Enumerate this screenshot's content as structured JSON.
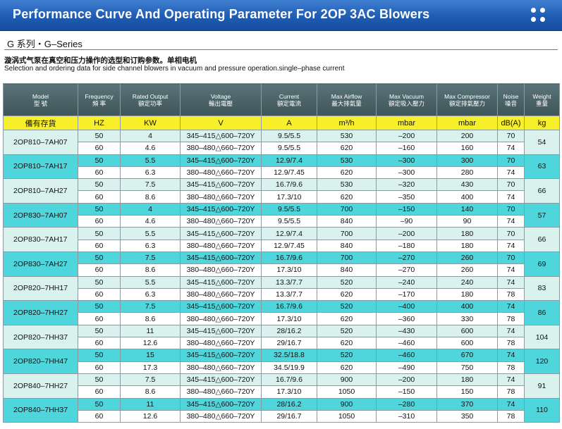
{
  "banner": {
    "title": "Performance Curve And Operating Parameter For 2OP 3AC Blowers"
  },
  "series": {
    "label": "G 系列・G–Series"
  },
  "description": {
    "cn": "漩涡式气泵在真空和压力操作的选型和订购参数。单相电机",
    "en": "Selection and ordering data for side channel blowers in vacuum and pressure operation.single–phase current"
  },
  "table": {
    "headers": [
      {
        "en": "Model",
        "cn": "型  號"
      },
      {
        "en": "Frequency",
        "cn": "頻  率"
      },
      {
        "en": "Rated Output",
        "cn": "額定功率"
      },
      {
        "en": "Voltage",
        "cn": "輸出電壓"
      },
      {
        "en": "Current",
        "cn": "額定電流"
      },
      {
        "en": "Max Airflow",
        "cn": "最大排氣量"
      },
      {
        "en": "Max Vacuum",
        "cn": "額定吸入壓力"
      },
      {
        "en": "Max Compressor",
        "cn": "額定排氣壓力"
      },
      {
        "en": "Noise",
        "cn": "噪音"
      },
      {
        "en": "Weight",
        "cn": "重量"
      }
    ],
    "units": [
      "備有存貨",
      "HZ",
      "KW",
      "V",
      "A",
      "m³/h",
      "mbar",
      "mbar",
      "dB(A)",
      "kg"
    ],
    "groups": [
      {
        "model": "2OP810–7AH07",
        "weight": "54",
        "rows": [
          {
            "hz": "50",
            "kw": "4",
            "v": "345–415△600–720Y",
            "a": "9.5/5.5",
            "airflow": "530",
            "vacuum": "–200",
            "comp": "200",
            "noise": "70"
          },
          {
            "hz": "60",
            "kw": "4.6",
            "v": "380–480△660–720Y",
            "a": "9.5/5.5",
            "airflow": "620",
            "vacuum": "–160",
            "comp": "160",
            "noise": "74"
          }
        ]
      },
      {
        "model": "2OP810–7AH17",
        "weight": "63",
        "rows": [
          {
            "hz": "50",
            "kw": "5.5",
            "v": "345–415△600–720Y",
            "a": "12.9/7.4",
            "airflow": "530",
            "vacuum": "–300",
            "comp": "300",
            "noise": "70"
          },
          {
            "hz": "60",
            "kw": "6.3",
            "v": "380–480△660–720Y",
            "a": "12.9/7.45",
            "airflow": "620",
            "vacuum": "–300",
            "comp": "280",
            "noise": "74"
          }
        ]
      },
      {
        "model": "2OP810–7AH27",
        "weight": "66",
        "rows": [
          {
            "hz": "50",
            "kw": "7.5",
            "v": "345–415△600–720Y",
            "a": "16.7/9.6",
            "airflow": "530",
            "vacuum": "–320",
            "comp": "430",
            "noise": "70"
          },
          {
            "hz": "60",
            "kw": "8.6",
            "v": "380–480△660–720Y",
            "a": "17.3/10",
            "airflow": "620",
            "vacuum": "–350",
            "comp": "400",
            "noise": "74"
          }
        ]
      },
      {
        "model": "2OP830–7AH07",
        "weight": "57",
        "rows": [
          {
            "hz": "50",
            "kw": "4",
            "v": "345–415△600–720Y",
            "a": "9.5/5.5",
            "airflow": "700",
            "vacuum": "–150",
            "comp": "140",
            "noise": "70"
          },
          {
            "hz": "60",
            "kw": "4.6",
            "v": "380–480△660–720Y",
            "a": "9.5/5.5",
            "airflow": "840",
            "vacuum": "–90",
            "comp": "90",
            "noise": "74"
          }
        ]
      },
      {
        "model": "2OP830–7AH17",
        "weight": "66",
        "rows": [
          {
            "hz": "50",
            "kw": "5.5",
            "v": "345–415△600–720Y",
            "a": "12.9/7.4",
            "airflow": "700",
            "vacuum": "–200",
            "comp": "180",
            "noise": "70"
          },
          {
            "hz": "60",
            "kw": "6.3",
            "v": "380–480△660–720Y",
            "a": "12.9/7.45",
            "airflow": "840",
            "vacuum": "–180",
            "comp": "180",
            "noise": "74"
          }
        ]
      },
      {
        "model": "2OP830–7AH27",
        "weight": "69",
        "rows": [
          {
            "hz": "50",
            "kw": "7.5",
            "v": "345–415△600–720Y",
            "a": "16.7/9.6",
            "airflow": "700",
            "vacuum": "–270",
            "comp": "260",
            "noise": "70"
          },
          {
            "hz": "60",
            "kw": "8.6",
            "v": "380–480△660–720Y",
            "a": "17.3/10",
            "airflow": "840",
            "vacuum": "–270",
            "comp": "260",
            "noise": "74"
          }
        ]
      },
      {
        "model": "2OP820–7HH17",
        "weight": "83",
        "rows": [
          {
            "hz": "50",
            "kw": "5.5",
            "v": "345–415△600–720Y",
            "a": "13.3/7.7",
            "airflow": "520",
            "vacuum": "–240",
            "comp": "240",
            "noise": "74"
          },
          {
            "hz": "60",
            "kw": "6.3",
            "v": "380–480△660–720Y",
            "a": "13.3/7.7",
            "airflow": "620",
            "vacuum": "–170",
            "comp": "180",
            "noise": "78"
          }
        ]
      },
      {
        "model": "2OP820–7HH27",
        "weight": "86",
        "rows": [
          {
            "hz": "50",
            "kw": "7.5",
            "v": "345–415△600–720Y",
            "a": "16.7/9.6",
            "airflow": "520",
            "vacuum": "–400",
            "comp": "400",
            "noise": "74"
          },
          {
            "hz": "60",
            "kw": "8.6",
            "v": "380–480△660–720Y",
            "a": "17.3/10",
            "airflow": "620",
            "vacuum": "–360",
            "comp": "330",
            "noise": "78"
          }
        ]
      },
      {
        "model": "2OP820–7HH37",
        "weight": "104",
        "rows": [
          {
            "hz": "50",
            "kw": "11",
            "v": "345–415△600–720Y",
            "a": "28/16.2",
            "airflow": "520",
            "vacuum": "–430",
            "comp": "600",
            "noise": "74"
          },
          {
            "hz": "60",
            "kw": "12.6",
            "v": "380–480△660–720Y",
            "a": "29/16.7",
            "airflow": "620",
            "vacuum": "–460",
            "comp": "600",
            "noise": "78"
          }
        ]
      },
      {
        "model": "2OP820–7HH47",
        "weight": "120",
        "rows": [
          {
            "hz": "50",
            "kw": "15",
            "v": "345–415△600–720Y",
            "a": "32.5/18.8",
            "airflow": "520",
            "vacuum": "–460",
            "comp": "670",
            "noise": "74"
          },
          {
            "hz": "60",
            "kw": "17.3",
            "v": "380–480△660–720Y",
            "a": "34.5/19.9",
            "airflow": "620",
            "vacuum": "–490",
            "comp": "750",
            "noise": "78"
          }
        ]
      },
      {
        "model": "2OP840–7HH27",
        "weight": "91",
        "rows": [
          {
            "hz": "50",
            "kw": "7.5",
            "v": "345–415△600–720Y",
            "a": "16.7/9.6",
            "airflow": "900",
            "vacuum": "–200",
            "comp": "180",
            "noise": "74"
          },
          {
            "hz": "60",
            "kw": "8.6",
            "v": "380–480△660–720Y",
            "a": "17.3/10",
            "airflow": "1050",
            "vacuum": "–150",
            "comp": "150",
            "noise": "78"
          }
        ]
      },
      {
        "model": "2OP840–7HH37",
        "weight": "110",
        "rows": [
          {
            "hz": "50",
            "kw": "11",
            "v": "345–415△600–720Y",
            "a": "28/16.2",
            "airflow": "900",
            "vacuum": "–280",
            "comp": "370",
            "noise": "74"
          },
          {
            "hz": "60",
            "kw": "12.6",
            "v": "380–480△660–720Y",
            "a": "29/16.7",
            "airflow": "1050",
            "vacuum": "–310",
            "comp": "350",
            "noise": "78"
          }
        ]
      }
    ]
  }
}
